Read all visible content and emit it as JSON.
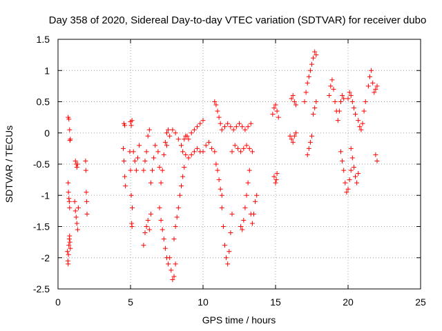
{
  "chart_data": {
    "type": "scatter",
    "title": "Day 358 of 2020, Sidereal Day-to-day VTEC variation (SDTVAR) for receiver dubo",
    "xlabel": "GPS time / hours",
    "ylabel": "SDTVAR / TECUs",
    "xlim": [
      0,
      25
    ],
    "ylim": [
      -2.5,
      1.5
    ],
    "xticks": [
      0,
      5,
      10,
      15,
      20,
      25
    ],
    "xtick_labels": [
      "0",
      "5",
      "10",
      "15",
      "20",
      "25"
    ],
    "yticks": [
      -2.5,
      -2,
      -1.5,
      -1,
      -0.5,
      0,
      0.5,
      1,
      1.5
    ],
    "ytick_labels": [
      "-2.5",
      "-2",
      "-1.5",
      "-1",
      "-0.5",
      "0",
      "0.5",
      "1",
      "1.5"
    ],
    "grid": true,
    "marker": "+",
    "color": "#ff0000",
    "series": [
      {
        "name": "SDTVAR",
        "segments": [
          [
            [
              0.7,
              0.25
            ],
            [
              0.75,
              0.22
            ],
            [
              0.8,
              0.05
            ],
            [
              0.82,
              -0.12
            ],
            [
              0.85,
              -0.1
            ]
          ],
          [
            [
              0.7,
              -0.8
            ],
            [
              0.72,
              -0.95
            ],
            [
              0.75,
              -1.05
            ],
            [
              0.78,
              -1.1
            ],
            [
              0.8,
              -1.2
            ]
          ],
          [
            [
              0.65,
              -1.9
            ],
            [
              0.68,
              -2.05
            ],
            [
              0.7,
              -2.1
            ],
            [
              0.72,
              -1.95
            ],
            [
              0.75,
              -1.8
            ],
            [
              0.78,
              -1.7
            ],
            [
              0.8,
              -1.65
            ],
            [
              0.82,
              -1.75
            ],
            [
              0.85,
              -1.85
            ]
          ],
          [
            [
              1.2,
              -0.45
            ],
            [
              1.25,
              -0.5
            ],
            [
              1.3,
              -0.55
            ],
            [
              1.35,
              -0.5
            ]
          ],
          [
            [
              1.15,
              -1.1
            ],
            [
              1.2,
              -1.25
            ],
            [
              1.25,
              -1.35
            ],
            [
              1.3,
              -1.45
            ],
            [
              1.35,
              -1.55
            ],
            [
              1.4,
              -1.2
            ]
          ],
          [
            [
              1.9,
              -0.45
            ],
            [
              1.92,
              -0.6
            ],
            [
              1.95,
              -0.95
            ],
            [
              1.98,
              -1.1
            ],
            [
              2.0,
              -1.3
            ]
          ],
          [
            [
              4.5,
              -0.25
            ],
            [
              4.55,
              -0.45
            ],
            [
              4.6,
              -0.7
            ],
            [
              4.65,
              -0.85
            ]
          ],
          [
            [
              4.55,
              0.15
            ],
            [
              4.6,
              0.12
            ]
          ],
          [
            [
              4.95,
              -0.3
            ],
            [
              5.0,
              -0.6
            ],
            [
              5.05,
              -1.0
            ],
            [
              5.08,
              -1.45
            ],
            [
              5.1,
              -1.5
            ],
            [
              5.12,
              -1.2
            ]
          ],
          [
            [
              5.0,
              0.18
            ],
            [
              5.05,
              0.12
            ],
            [
              5.1,
              0.2
            ]
          ],
          [
            [
              5.2,
              -0.3
            ],
            [
              5.3,
              -0.45
            ],
            [
              5.4,
              -0.6
            ],
            [
              5.5,
              -0.4
            ],
            [
              5.6,
              -0.2
            ]
          ],
          [
            [
              5.9,
              -0.6
            ],
            [
              6.0,
              -0.45
            ],
            [
              6.1,
              -0.3
            ],
            [
              6.2,
              -0.05
            ],
            [
              6.3,
              0.05
            ]
          ],
          [
            [
              5.9,
              -1.8
            ],
            [
              6.0,
              -1.6
            ],
            [
              6.1,
              -1.5
            ],
            [
              6.2,
              -1.4
            ],
            [
              6.3,
              -1.55
            ],
            [
              6.4,
              -1.3
            ]
          ],
          [
            [
              6.4,
              -0.8
            ],
            [
              6.5,
              -0.6
            ],
            [
              6.6,
              -0.4
            ],
            [
              6.7,
              -0.2
            ]
          ],
          [
            [
              6.9,
              -0.3
            ],
            [
              7.0,
              -0.55
            ],
            [
              7.1,
              -0.8
            ],
            [
              7.2,
              -0.6
            ],
            [
              7.3,
              -0.35
            ],
            [
              7.4,
              -0.15
            ],
            [
              7.5,
              0.0
            ],
            [
              7.6,
              0.05
            ]
          ],
          [
            [
              7.0,
              -1.2
            ],
            [
              7.1,
              -1.4
            ],
            [
              7.2,
              -1.55
            ],
            [
              7.3,
              -1.7
            ],
            [
              7.4,
              -1.85
            ],
            [
              7.5,
              -2.0
            ],
            [
              7.6,
              -2.1
            ],
            [
              7.7,
              -2.0
            ],
            [
              7.8,
              -2.2
            ],
            [
              7.9,
              -2.35
            ],
            [
              8.0,
              -2.3
            ],
            [
              8.1,
              -2.1
            ]
          ],
          [
            [
              7.5,
              -0.2
            ],
            [
              7.7,
              -0.05
            ],
            [
              7.9,
              0.05
            ],
            [
              8.1,
              0.0
            ],
            [
              8.3,
              -0.1
            ],
            [
              8.5,
              -0.2
            ],
            [
              8.7,
              -0.1
            ],
            [
              8.9,
              -0.05
            ]
          ],
          [
            [
              8.0,
              -1.7
            ],
            [
              8.1,
              -1.5
            ],
            [
              8.2,
              -1.35
            ],
            [
              8.3,
              -1.2
            ],
            [
              8.4,
              -1.0
            ],
            [
              8.5,
              -0.85
            ],
            [
              8.6,
              -0.7
            ],
            [
              8.7,
              -0.55
            ]
          ],
          [
            [
              8.6,
              -0.3
            ],
            [
              8.8,
              -0.35
            ],
            [
              9.0,
              -0.4
            ],
            [
              9.2,
              -0.35
            ],
            [
              9.4,
              -0.3
            ],
            [
              9.6,
              -0.25
            ],
            [
              9.8,
              -0.3
            ]
          ],
          [
            [
              8.8,
              -0.05
            ],
            [
              9.0,
              -0.1
            ],
            [
              9.2,
              0.0
            ],
            [
              9.4,
              0.05
            ],
            [
              9.6,
              0.1
            ],
            [
              9.8,
              0.15
            ],
            [
              10.0,
              0.2
            ]
          ],
          [
            [
              10.0,
              -0.3
            ],
            [
              10.2,
              -0.2
            ],
            [
              10.4,
              -0.15
            ],
            [
              10.6,
              -0.25
            ],
            [
              10.8,
              -0.3
            ]
          ],
          [
            [
              10.8,
              0.5
            ],
            [
              10.9,
              0.45
            ],
            [
              11.0,
              0.35
            ],
            [
              11.1,
              0.25
            ],
            [
              11.2,
              0.15
            ],
            [
              11.3,
              0.05
            ]
          ],
          [
            [
              10.9,
              -0.5
            ],
            [
              11.0,
              -0.6
            ],
            [
              11.1,
              -0.75
            ],
            [
              11.2,
              -0.9
            ],
            [
              11.3,
              -1.0
            ]
          ],
          [
            [
              11.3,
              -1.2
            ],
            [
              11.4,
              -1.5
            ],
            [
              11.5,
              -1.8
            ],
            [
              11.6,
              -2.0
            ],
            [
              11.7,
              -2.1
            ],
            [
              11.8,
              -1.9
            ],
            [
              11.9,
              -1.6
            ],
            [
              12.0,
              -1.3
            ]
          ],
          [
            [
              11.5,
              0.1
            ],
            [
              11.7,
              0.15
            ],
            [
              11.9,
              0.1
            ],
            [
              12.1,
              0.05
            ],
            [
              12.3,
              0.1
            ],
            [
              12.5,
              0.15
            ],
            [
              12.7,
              0.1
            ],
            [
              12.9,
              0.05
            ],
            [
              13.1,
              0.1
            ],
            [
              13.3,
              0.15
            ]
          ],
          [
            [
              12.0,
              -0.3
            ],
            [
              12.2,
              -0.2
            ],
            [
              12.4,
              -0.25
            ],
            [
              12.6,
              -0.3
            ],
            [
              12.8,
              -0.25
            ],
            [
              13.0,
              -0.2
            ],
            [
              13.2,
              -0.25
            ],
            [
              13.4,
              -0.3
            ]
          ],
          [
            [
              12.6,
              -1.5
            ],
            [
              12.7,
              -1.55
            ],
            [
              12.8,
              -1.4
            ],
            [
              12.9,
              -1.2
            ],
            [
              13.0,
              -1.0
            ],
            [
              13.1,
              -0.8
            ],
            [
              13.2,
              -0.6
            ]
          ],
          [
            [
              13.3,
              -1.3
            ],
            [
              13.4,
              -1.45
            ],
            [
              13.5,
              -1.3
            ],
            [
              13.6,
              -1.1
            ],
            [
              13.7,
              -1.0
            ]
          ],
          [
            [
              14.9,
              -0.7
            ],
            [
              15.0,
              -0.8
            ],
            [
              15.05,
              -0.75
            ],
            [
              15.1,
              -0.65
            ]
          ],
          [
            [
              14.8,
              0.3
            ],
            [
              14.9,
              0.4
            ],
            [
              15.0,
              0.45
            ],
            [
              15.1,
              0.35
            ],
            [
              15.2,
              0.25
            ]
          ],
          [
            [
              16.0,
              -0.05
            ],
            [
              16.1,
              -0.1
            ],
            [
              16.2,
              -0.15
            ],
            [
              16.3,
              -0.05
            ],
            [
              16.4,
              0.0
            ]
          ],
          [
            [
              16.1,
              0.55
            ],
            [
              16.2,
              0.6
            ],
            [
              16.3,
              0.5
            ],
            [
              16.4,
              0.45
            ]
          ],
          [
            [
              17.0,
              0.5
            ],
            [
              17.1,
              0.65
            ],
            [
              17.2,
              0.8
            ],
            [
              17.3,
              0.9
            ],
            [
              17.4,
              1.0
            ],
            [
              17.5,
              1.1
            ],
            [
              17.6,
              1.2
            ],
            [
              17.7,
              1.3
            ],
            [
              17.8,
              1.25
            ]
          ],
          [
            [
              17.2,
              -0.35
            ],
            [
              17.3,
              -0.25
            ],
            [
              17.4,
              -0.15
            ],
            [
              17.5,
              -0.05
            ]
          ],
          [
            [
              17.6,
              0.3
            ],
            [
              17.7,
              0.4
            ],
            [
              17.8,
              0.5
            ]
          ],
          [
            [
              18.7,
              0.6
            ],
            [
              18.8,
              0.75
            ],
            [
              18.9,
              0.85
            ],
            [
              19.0,
              0.7
            ],
            [
              19.1,
              0.5
            ],
            [
              19.2,
              0.35
            ]
          ],
          [
            [
              19.3,
              0.2
            ],
            [
              19.4,
              0.35
            ],
            [
              19.5,
              0.5
            ],
            [
              19.6,
              0.6
            ],
            [
              19.7,
              0.55
            ]
          ],
          [
            [
              19.5,
              -0.3
            ],
            [
              19.6,
              -0.45
            ],
            [
              19.7,
              -0.6
            ],
            [
              19.8,
              -0.8
            ],
            [
              19.9,
              -0.95
            ],
            [
              20.0,
              -0.9
            ],
            [
              20.1,
              -0.75
            ],
            [
              20.2,
              -0.6
            ]
          ],
          [
            [
              20.0,
              0.55
            ],
            [
              20.1,
              0.65
            ],
            [
              20.2,
              0.6
            ],
            [
              20.3,
              0.5
            ],
            [
              20.4,
              0.4
            ],
            [
              20.5,
              0.3
            ]
          ],
          [
            [
              20.2,
              -0.25
            ],
            [
              20.3,
              -0.4
            ],
            [
              20.4,
              -0.55
            ],
            [
              20.5,
              -0.7
            ],
            [
              20.6,
              -0.8
            ],
            [
              20.7,
              -0.65
            ]
          ],
          [
            [
              20.7,
              0.2
            ],
            [
              20.8,
              0.1
            ],
            [
              20.9,
              0.05
            ],
            [
              21.0,
              0.15
            ],
            [
              21.1,
              0.35
            ],
            [
              21.2,
              0.5
            ]
          ],
          [
            [
              21.4,
              0.75
            ],
            [
              21.5,
              0.9
            ],
            [
              21.6,
              1.0
            ],
            [
              21.7,
              0.8
            ],
            [
              21.8,
              0.65
            ],
            [
              21.9,
              0.7
            ],
            [
              22.0,
              0.75
            ]
          ],
          [
            [
              21.9,
              -0.35
            ],
            [
              22.0,
              -0.45
            ]
          ]
        ]
      }
    ]
  }
}
